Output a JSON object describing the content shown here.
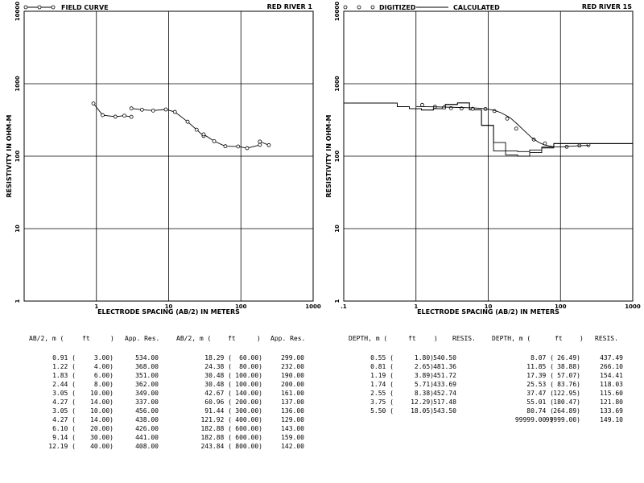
{
  "chart_data": [
    {
      "type": "line",
      "title": "RED RIVER 1",
      "xlabel": "ELECTRODE SPACING (AB/2) IN METERS",
      "ylabel": "RESISTIVITY IN OHM-M",
      "xscale": "log",
      "yscale": "log",
      "xlim": [
        0.1,
        1000
      ],
      "ylim": [
        1,
        10000
      ],
      "x_ticks": [
        "1",
        "10",
        "100",
        "1000"
      ],
      "y_ticks": [
        "10000",
        "1000",
        "100",
        "10",
        "1"
      ],
      "legend": [
        {
          "name": "FIELD CURVE",
          "style": "line-with-circles"
        }
      ],
      "series": [
        {
          "name": "FIELD CURVE",
          "segments": [
            {
              "x": [
                0.91,
                1.22,
                1.83,
                2.44,
                3.05
              ],
              "y": [
                534,
                368,
                351,
                362,
                349
              ]
            },
            {
              "x": [
                3.05,
                4.27,
                6.1,
                9.14,
                12.19,
                18.29,
                24.38,
                30.48,
                30.48,
                42.67,
                60.96,
                91.44,
                121.92,
                182.88,
                182.88,
                243.84
              ],
              "y": [
                456,
                438,
                426,
                441,
                408,
                299,
                232,
                190,
                200,
                161,
                137,
                136,
                129,
                143,
                159,
                142
              ]
            }
          ]
        }
      ]
    },
    {
      "type": "line",
      "title": "RED RIVER 1S",
      "xlabel": "ELECTRODE SPACING (AB/2) IN METERS",
      "ylabel": "RESISTIVITY IN OHM-M",
      "xscale": "log",
      "yscale": "log",
      "xlim": [
        0.1,
        1000
      ],
      "ylim": [
        1,
        10000
      ],
      "x_ticks": [
        ".1",
        "1",
        "10",
        "100",
        "1000"
      ],
      "y_ticks": [
        "10000",
        "1000",
        "100",
        "10",
        "1"
      ],
      "legend": [
        {
          "name": "DIGITIZED",
          "style": "circles"
        },
        {
          "name": "CALCULATED",
          "style": "line"
        }
      ],
      "series": [
        {
          "name": "DIGITIZED",
          "x": [
            1.22,
            1.83,
            2.44,
            3.05,
            4.27,
            6.1,
            9.14,
            12.19,
            18.29,
            24.38,
            42.67,
            60.96,
            121.92,
            182.88,
            243.84
          ],
          "y": [
            510,
            480,
            470,
            460,
            455,
            450,
            448,
            420,
            330,
            240,
            170,
            150,
            135,
            140,
            142
          ]
        },
        {
          "name": "CALCULATED",
          "x": [
            1,
            2,
            4,
            6,
            8,
            10,
            12,
            15,
            20,
            25,
            30,
            40,
            50,
            60,
            80,
            100,
            150,
            250
          ],
          "y": [
            485,
            478,
            470,
            465,
            458,
            445,
            430,
            398,
            340,
            280,
            235,
            180,
            155,
            143,
            135,
            134,
            138,
            141
          ]
        }
      ],
      "layer_models": [
        {
          "depth": [
            0.1,
            0.55,
            0.81,
            1.19,
            1.74,
            2.55,
            3.75,
            5.5,
            8.07,
            11.85,
            17.39,
            25.53,
            37.47,
            55.01,
            80.74,
            1000
          ],
          "res": [
            540.5,
            481.36,
            451.72,
            433.69,
            452.74,
            517.48,
            543.5,
            437.49,
            266.1,
            154.41,
            118.03,
            115.6,
            121.8,
            133.69,
            149.1
          ]
        },
        {
          "depth": [
            0.1,
            0.55,
            0.81,
            1.19,
            1.74,
            2.55,
            3.75,
            5.5,
            8.07,
            11.85,
            17.39,
            25.53,
            37.47,
            55.01,
            80.74,
            1000
          ],
          "res": [
            540.5,
            481.36,
            451.72,
            433.69,
            452.74,
            517.48,
            543.5,
            437.49,
            266.1,
            118.03,
            104.0,
            100.0,
            112.0,
            130.0,
            149.1
          ]
        }
      ]
    }
  ],
  "left_table": {
    "headers": [
      "AB/2, m (",
      "ft",
      ")",
      "App. Res.",
      "AB/2, m (",
      "ft",
      ")",
      "App. Res."
    ],
    "rows": [
      [
        "0.91 (",
        "3.00)",
        "534.00",
        "18.29 (",
        "60.00)",
        "299.00"
      ],
      [
        "1.22 (",
        "4.00)",
        "368.00",
        "24.38 (",
        "80.00)",
        "232.00"
      ],
      [
        "1.83 (",
        "6.00)",
        "351.00",
        "30.48 (",
        "100.00)",
        "190.00"
      ],
      [
        "2.44 (",
        "8.00)",
        "362.00",
        "30.48 (",
        "100.00)",
        "200.00"
      ],
      [
        "3.05 (",
        "10.00)",
        "349.00",
        "42.67 (",
        "140.00)",
        "161.00"
      ],
      [
        "4.27 (",
        "14.00)",
        "337.00",
        "60.96 (",
        "200.00)",
        "137.00"
      ],
      [
        "3.05 (",
        "10.00)",
        "456.00",
        "91.44 (",
        "300.00)",
        "136.00"
      ],
      [
        "4.27 (",
        "14.00)",
        "438.00",
        "121.92 (",
        "400.00)",
        "129.00"
      ],
      [
        "6.10 (",
        "20.00)",
        "426.00",
        "182.88 (",
        "600.00)",
        "143.00"
      ],
      [
        "9.14 (",
        "30.00)",
        "441.00",
        "182.88 (",
        "600.00)",
        "159.00"
      ],
      [
        "12.19 (",
        "40.00)",
        "408.00",
        "243.84 (",
        "800.00)",
        "142.00"
      ]
    ]
  },
  "right_table": {
    "headers": [
      "DEPTH, m (",
      "ft",
      ")",
      "RESIS.",
      "DEPTH, m (",
      "ft",
      ")",
      "RESIS."
    ],
    "rows": [
      [
        "0.55 (",
        "1.80)",
        "540.50",
        "8.07 (",
        "26.49)",
        "437.49"
      ],
      [
        "0.81 (",
        "2.65)",
        "481.36",
        "11.85 (",
        "38.88)",
        "266.10"
      ],
      [
        "1.19 (",
        "3.89)",
        "451.72",
        "17.39 (",
        "57.07)",
        "154.41"
      ],
      [
        "1.74 (",
        "5.71)",
        "433.69",
        "25.53 (",
        "83.76)",
        "118.03"
      ],
      [
        "2.55 (",
        "8.38)",
        "452.74",
        "37.47 (",
        "122.95)",
        "115.60"
      ],
      [
        "3.75 (",
        "12.29)",
        "517.48",
        "55.01 (",
        "180.47)",
        "121.80"
      ],
      [
        "5.50 (",
        "18.05)",
        "543.50",
        "80.74 (",
        "264.89)",
        "133.69"
      ],
      [
        "",
        "",
        "",
        "99999.00 (",
        "99999.00)",
        "149.10"
      ]
    ]
  }
}
